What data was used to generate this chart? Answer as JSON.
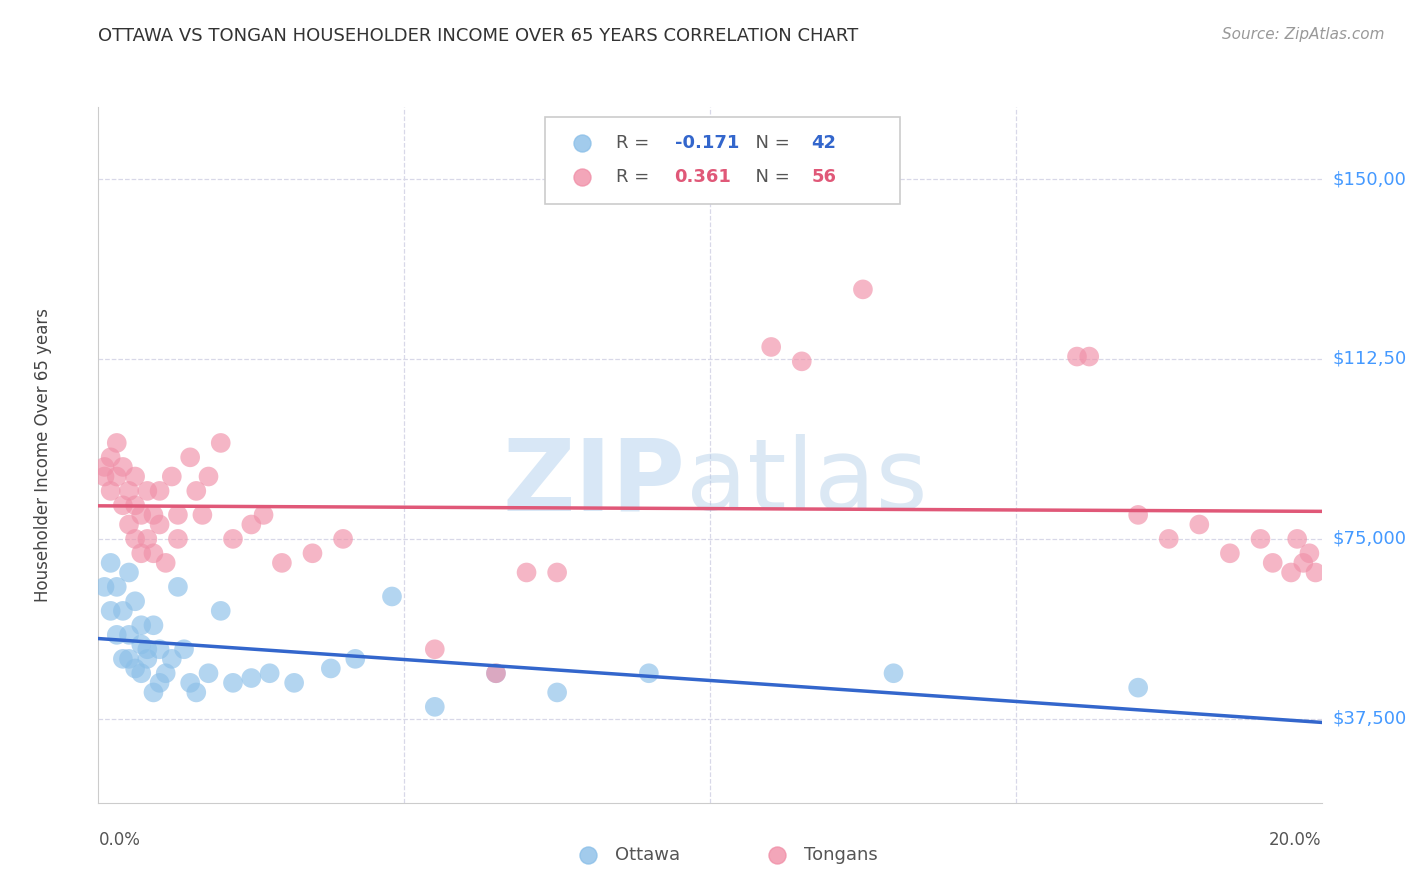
{
  "title": "OTTAWA VS TONGAN HOUSEHOLDER INCOME OVER 65 YEARS CORRELATION CHART",
  "source": "Source: ZipAtlas.com",
  "ylabel": "Householder Income Over 65 years",
  "xlim": [
    0.0,
    0.2
  ],
  "ylim": [
    20000,
    165000
  ],
  "yticks": [
    37500,
    75000,
    112500,
    150000
  ],
  "ytick_labels": [
    "$37,500",
    "$75,000",
    "$112,500",
    "$150,000"
  ],
  "background_color": "#ffffff",
  "grid_color": "#d8d8e8",
  "ottawa_color": "#8bbfe8",
  "tongan_color": "#f090a8",
  "ottawa_line_color": "#3366cc",
  "tongan_line_color": "#e05878",
  "legend_ottawa_r": "-0.171",
  "legend_ottawa_n": "42",
  "legend_tongan_r": "0.361",
  "legend_tongan_n": "56",
  "ottawa_x": [
    0.001,
    0.002,
    0.002,
    0.003,
    0.003,
    0.004,
    0.004,
    0.005,
    0.005,
    0.005,
    0.006,
    0.006,
    0.007,
    0.007,
    0.007,
    0.008,
    0.008,
    0.009,
    0.009,
    0.01,
    0.01,
    0.011,
    0.012,
    0.013,
    0.014,
    0.015,
    0.016,
    0.018,
    0.02,
    0.022,
    0.025,
    0.028,
    0.032,
    0.038,
    0.042,
    0.048,
    0.055,
    0.065,
    0.075,
    0.09,
    0.13,
    0.17
  ],
  "ottawa_y": [
    65000,
    70000,
    60000,
    55000,
    65000,
    60000,
    50000,
    68000,
    55000,
    50000,
    62000,
    48000,
    57000,
    53000,
    47000,
    52000,
    50000,
    57000,
    43000,
    52000,
    45000,
    47000,
    50000,
    65000,
    52000,
    45000,
    43000,
    47000,
    60000,
    45000,
    46000,
    47000,
    45000,
    48000,
    50000,
    63000,
    40000,
    47000,
    43000,
    47000,
    47000,
    44000
  ],
  "tongan_x": [
    0.001,
    0.001,
    0.002,
    0.002,
    0.003,
    0.003,
    0.004,
    0.004,
    0.005,
    0.005,
    0.006,
    0.006,
    0.006,
    0.007,
    0.007,
    0.008,
    0.008,
    0.009,
    0.009,
    0.01,
    0.01,
    0.011,
    0.012,
    0.013,
    0.013,
    0.015,
    0.016,
    0.017,
    0.018,
    0.02,
    0.022,
    0.025,
    0.027,
    0.03,
    0.035,
    0.04,
    0.055,
    0.065,
    0.07,
    0.075,
    0.11,
    0.115,
    0.125,
    0.16,
    0.162,
    0.17,
    0.175,
    0.18,
    0.185,
    0.19,
    0.192,
    0.195,
    0.196,
    0.197,
    0.198,
    0.199
  ],
  "tongan_y": [
    90000,
    88000,
    92000,
    85000,
    95000,
    88000,
    90000,
    82000,
    85000,
    78000,
    88000,
    82000,
    75000,
    80000,
    72000,
    85000,
    75000,
    80000,
    72000,
    78000,
    85000,
    70000,
    88000,
    80000,
    75000,
    92000,
    85000,
    80000,
    88000,
    95000,
    75000,
    78000,
    80000,
    70000,
    72000,
    75000,
    52000,
    47000,
    68000,
    68000,
    115000,
    112000,
    127000,
    113000,
    113000,
    80000,
    75000,
    78000,
    72000,
    75000,
    70000,
    68000,
    75000,
    70000,
    72000,
    68000
  ]
}
